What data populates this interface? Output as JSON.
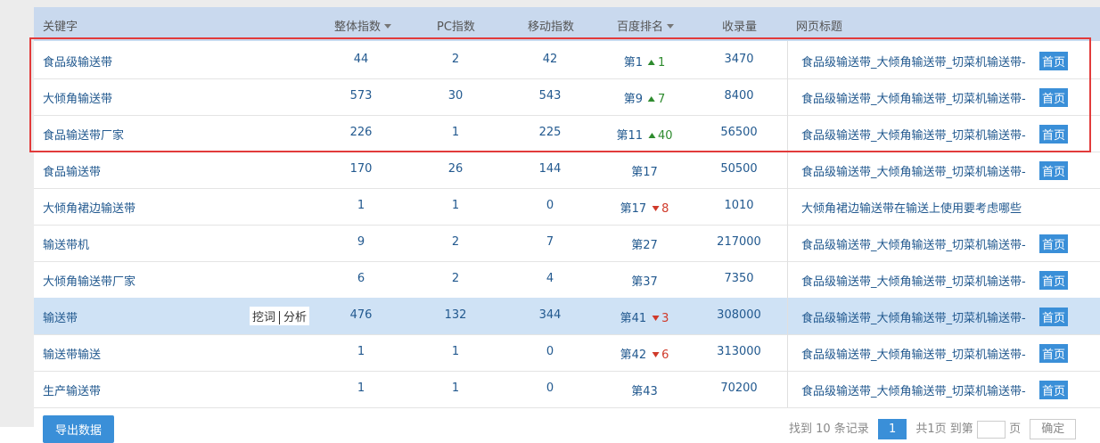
{
  "header": {
    "keyword": "关键字",
    "overall": "整体指数",
    "pc": "PC指数",
    "mobile": "移动指数",
    "rank": "百度排名",
    "indexed": "收录量",
    "page_title": "网页标题"
  },
  "table": {
    "rows": [
      {
        "keyword": "食品级输送带",
        "overall": 44,
        "pc": 2,
        "mobile": 42,
        "rank": "第1",
        "change": {
          "direction": "up",
          "value": 1
        },
        "indexed": 3470,
        "page_title": "食品级输送带_大倾角输送带_切菜机输送带-",
        "badge": "首页"
      },
      {
        "keyword": "大倾角输送带",
        "overall": 573,
        "pc": 30,
        "mobile": 543,
        "rank": "第9",
        "change": {
          "direction": "up",
          "value": 7
        },
        "indexed": 8400,
        "page_title": "食品级输送带_大倾角输送带_切菜机输送带-",
        "badge": "首页"
      },
      {
        "keyword": "食品输送带厂家",
        "overall": 226,
        "pc": 1,
        "mobile": 225,
        "rank": "第11",
        "change": {
          "direction": "up",
          "value": 40
        },
        "indexed": 56500,
        "page_title": "食品级输送带_大倾角输送带_切菜机输送带-",
        "badge": "首页"
      },
      {
        "keyword": "食品输送带",
        "overall": 170,
        "pc": 26,
        "mobile": 144,
        "rank": "第17",
        "indexed": 50500,
        "page_title": "食品级输送带_大倾角输送带_切菜机输送带-",
        "badge": "首页"
      },
      {
        "keyword": "大倾角裙边输送带",
        "overall": 1,
        "pc": 1,
        "mobile": 0,
        "rank": "第17",
        "change": {
          "direction": "down",
          "value": 8
        },
        "indexed": 1010,
        "page_title": "大倾角裙边输送带在输送上使用要考虑哪些"
      },
      {
        "keyword": "输送带机",
        "overall": 9,
        "pc": 2,
        "mobile": 7,
        "rank": "第27",
        "indexed": 217000,
        "page_title": "食品级输送带_大倾角输送带_切菜机输送带-",
        "badge": "首页"
      },
      {
        "keyword": "大倾角输送带厂家",
        "overall": 6,
        "pc": 2,
        "mobile": 4,
        "rank": "第37",
        "indexed": 7350,
        "page_title": "食品级输送带_大倾角输送带_切菜机输送带-",
        "badge": "首页"
      },
      {
        "keyword": "输送带",
        "overall": 476,
        "pc": 132,
        "mobile": 344,
        "rank": "第41",
        "change": {
          "direction": "down",
          "value": 3
        },
        "indexed": 308000,
        "page_title": "食品级输送带_大倾角输送带_切菜机输送带-",
        "badge": "首页",
        "actions": [
          "挖词",
          "分析"
        ]
      },
      {
        "keyword": "输送带输送",
        "overall": 1,
        "pc": 1,
        "mobile": 0,
        "rank": "第42",
        "change": {
          "direction": "down",
          "value": 6
        },
        "indexed": 313000,
        "page_title": "食品级输送带_大倾角输送带_切菜机输送带-",
        "badge": "首页"
      },
      {
        "keyword": "生产输送带",
        "overall": 1,
        "pc": 1,
        "mobile": 0,
        "rank": "第43",
        "indexed": 70200,
        "page_title": "食品级输送带_大倾角输送带_切菜机输送带-",
        "badge": "首页"
      }
    ]
  },
  "footer": {
    "export": "导出数据",
    "found": "找到 10 条记录",
    "page": "1",
    "total": "共1页",
    "goto": "到第",
    "page_unit": "页",
    "confirm": "确定"
  }
}
